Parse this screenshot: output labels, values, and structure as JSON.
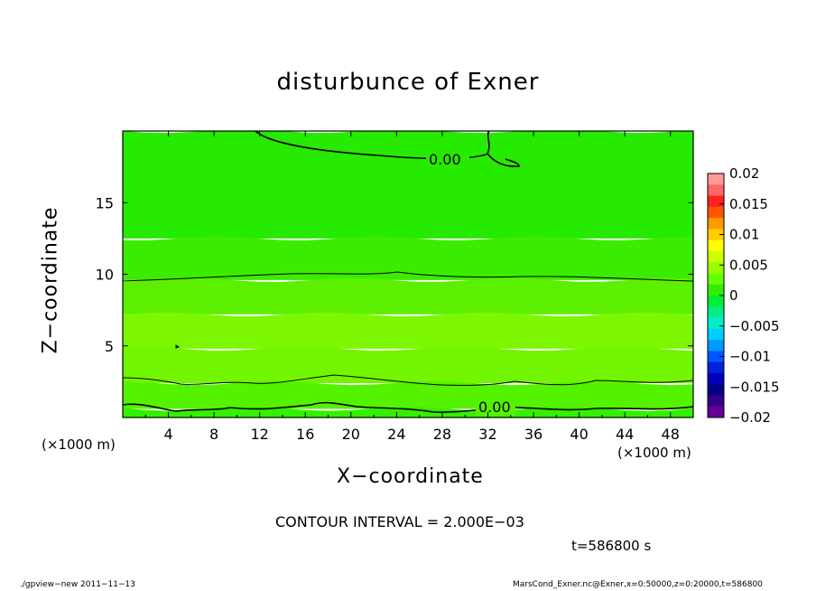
{
  "chart_data": {
    "type": "heatmap",
    "title": "disturbunce of Exner",
    "xlabel": "X−coordinate",
    "ylabel": "Z−coordinate",
    "x_unit": "(×1000 m)",
    "xlim": [
      0,
      50
    ],
    "ylim": [
      0,
      20
    ],
    "xticks": [
      4,
      8,
      12,
      16,
      20,
      24,
      28,
      32,
      36,
      40,
      44,
      48
    ],
    "yticks": [
      5,
      10,
      15
    ],
    "colorbar": {
      "ticks": [
        "0.02",
        "0.015",
        "0.01",
        "0.005",
        "0",
        "−0.005",
        "−0.01",
        "−0.015",
        "−0.02"
      ],
      "range": [
        -0.02,
        0.02
      ],
      "colors": [
        "#ff9999",
        "#ff6666",
        "#ff2222",
        "#ff5500",
        "#ff9900",
        "#ffcc00",
        "#ffff00",
        "#ccff00",
        "#99ff00",
        "#66ff00",
        "#33ee00",
        "#00ee33",
        "#00ee88",
        "#00eecc",
        "#00ccff",
        "#0099ff",
        "#0055ff",
        "#0022dd",
        "#0000bb",
        "#000088",
        "#330088",
        "#660099"
      ]
    },
    "field_bands": [
      {
        "z_range": [
          0,
          0.6
        ],
        "value": 0.0006,
        "color": "#33f000"
      },
      {
        "z_range": [
          0.6,
          2.4
        ],
        "value": 0.0012,
        "color": "#55f200"
      },
      {
        "z_range": [
          2.4,
          4.8
        ],
        "value": 0.0028,
        "color": "#72f500"
      },
      {
        "z_range": [
          4.8,
          7.2
        ],
        "value": 0.0034,
        "color": "#7df700"
      },
      {
        "z_range": [
          7.2,
          9.6
        ],
        "value": 0.0022,
        "color": "#5cf000"
      },
      {
        "z_range": [
          9.6,
          12.5
        ],
        "value": 0.0012,
        "color": "#3cec00"
      },
      {
        "z_range": [
          12.5,
          20
        ],
        "value": 0.0003,
        "color": "#26ea00"
      }
    ],
    "contour_labels": [
      "0.00",
      "0.00"
    ],
    "contour_interval": "CONTOUR INTERVAL = 2.000E−03",
    "time": "t=586800 s"
  },
  "footer": {
    "left": "./gpview−new   2011−11−13",
    "right": "MarsCond_Exner.nc@Exner,x=0:50000,z=0:20000,t=586800"
  }
}
